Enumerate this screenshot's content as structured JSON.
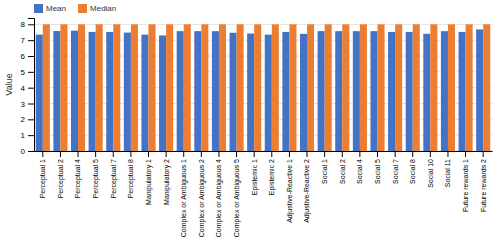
{
  "chart_data": {
    "type": "bar",
    "categories": [
      "Perceptual 1",
      "Perceptual 2",
      "Perceptual 4",
      "Perceptual 5",
      "Perceptual 7",
      "Perceptual 8",
      "Manipulatory 1",
      "Manipulatory 2",
      "Complex or Ambiguous 1",
      "Complex or Ambiguous 2",
      "Complex or Ambiguous 4",
      "Complex or Ambiguous 5",
      "Epistemic 1",
      "Epistemic 2",
      "Adjustive-Reactive 1",
      "Adjustive-Reactive 2",
      "Social 1",
      "Social 2",
      "Social 4",
      "Social 5",
      "Social 7",
      "Social 8",
      "Social 10",
      "Social 11",
      "Future rewards 1",
      "Future rewards 2"
    ],
    "series": [
      {
        "name": "Mean",
        "color": "#4472c4",
        "values": [
          7.35,
          7.58,
          7.6,
          7.52,
          7.52,
          7.48,
          7.35,
          7.3,
          7.57,
          7.57,
          7.57,
          7.47,
          7.42,
          7.35,
          7.52,
          7.4,
          7.57,
          7.57,
          7.57,
          7.57,
          7.52,
          7.52,
          7.4,
          7.57,
          7.52,
          7.68
        ]
      },
      {
        "name": "Median",
        "color": "#ed7d31",
        "values": [
          8,
          8,
          8,
          8,
          8,
          8,
          8,
          8,
          8,
          8,
          8,
          8,
          8,
          8,
          8,
          8,
          8,
          8,
          8,
          8,
          8,
          8,
          8,
          8,
          8,
          8
        ]
      }
    ],
    "ylabel": "Value",
    "ylim": [
      0,
      8.4
    ],
    "yticks": [
      0,
      1,
      2,
      3,
      4,
      5,
      6,
      7,
      8
    ],
    "grid": true,
    "legend": "upper left"
  }
}
